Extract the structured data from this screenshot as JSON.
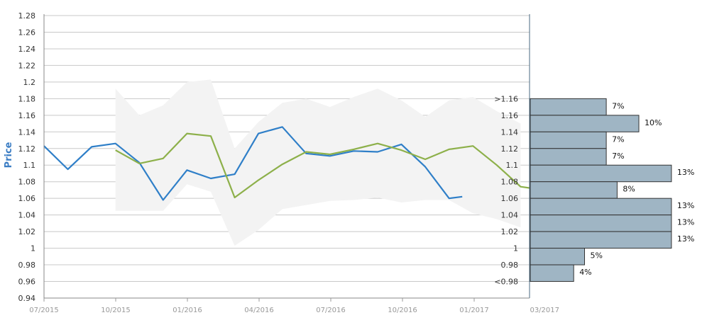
{
  "chart_data": {
    "type": "line",
    "title": "",
    "xlabel": "",
    "ylabel": "Price",
    "ylim": [
      0.94,
      1.28
    ],
    "y_ticks": [
      "1.28",
      "1.26",
      "1.24",
      "1.22",
      "1.2",
      "1.18",
      "1.16",
      "1.14",
      "1.12",
      "1.1",
      "1.08",
      "1.06",
      "1.04",
      "1.02",
      "1",
      "0.98",
      "0.96",
      "0.94"
    ],
    "x_ticks": [
      "07/2015",
      "10/2015",
      "01/2016",
      "04/2016",
      "07/2016",
      "10/2016",
      "01/2017",
      "03/2017"
    ],
    "grid": true,
    "x_months_from_start": [
      0,
      1,
      2,
      3,
      4,
      5,
      6,
      7,
      8,
      9,
      10,
      11,
      12,
      13,
      14,
      15,
      16,
      17,
      18,
      19,
      20,
      21
    ],
    "series": [
      {
        "color": "#2f7fc8",
        "points": [
          [
            0,
            1.123
          ],
          [
            1,
            1.095
          ],
          [
            2,
            1.122
          ],
          [
            3,
            1.126
          ],
          [
            4,
            1.103
          ],
          [
            5,
            1.058
          ],
          [
            6,
            1.094
          ],
          [
            7,
            1.084
          ],
          [
            8,
            1.089
          ],
          [
            9,
            1.138
          ],
          [
            10,
            1.146
          ],
          [
            11,
            1.114
          ],
          [
            12,
            1.111
          ],
          [
            13,
            1.117
          ],
          [
            14,
            1.116
          ],
          [
            15,
            1.125
          ],
          [
            16,
            1.098
          ],
          [
            17,
            1.06
          ],
          [
            17.55,
            1.062
          ]
        ]
      },
      {
        "color": "#8db04a",
        "points": [
          [
            3,
            1.118
          ],
          [
            4,
            1.102
          ],
          [
            5,
            1.108
          ],
          [
            6,
            1.138
          ],
          [
            7,
            1.135
          ],
          [
            8,
            1.061
          ],
          [
            9,
            1.082
          ],
          [
            10,
            1.101
          ],
          [
            11,
            1.116
          ],
          [
            12,
            1.113
          ],
          [
            13,
            1.119
          ],
          [
            14,
            1.126
          ],
          [
            15,
            1.118
          ],
          [
            16,
            1.107
          ],
          [
            17,
            1.119
          ],
          [
            18,
            1.123
          ],
          [
            19,
            1.1
          ],
          [
            20,
            1.074
          ],
          [
            20.5,
            1.072
          ]
        ]
      }
    ],
    "band": {
      "color": "#f3f3f3",
      "upper": [
        [
          3,
          1.192
        ],
        [
          4,
          1.16
        ],
        [
          5,
          1.172
        ],
        [
          6,
          1.2
        ],
        [
          7,
          1.203
        ],
        [
          8,
          1.12
        ],
        [
          9,
          1.152
        ],
        [
          10,
          1.175
        ],
        [
          11,
          1.18
        ],
        [
          12,
          1.17
        ],
        [
          13,
          1.182
        ],
        [
          14,
          1.192
        ],
        [
          15,
          1.178
        ],
        [
          16,
          1.158
        ],
        [
          17,
          1.178
        ],
        [
          18,
          1.182
        ],
        [
          19,
          1.165
        ],
        [
          20,
          1.15
        ]
      ],
      "lower": [
        [
          3,
          1.045
        ],
        [
          4,
          1.045
        ],
        [
          5,
          1.045
        ],
        [
          6,
          1.077
        ],
        [
          7,
          1.068
        ],
        [
          8,
          1.003
        ],
        [
          9,
          1.022
        ],
        [
          10,
          1.047
        ],
        [
          11,
          1.052
        ],
        [
          12,
          1.057
        ],
        [
          13,
          1.058
        ],
        [
          14,
          1.061
        ],
        [
          15,
          1.055
        ],
        [
          16,
          1.058
        ],
        [
          17,
          1.058
        ],
        [
          18,
          1.042
        ],
        [
          19,
          1.035
        ],
        [
          20,
          1.025
        ]
      ]
    },
    "histogram": {
      "color": "#9fb5c4",
      "border": "#333333",
      "bins": [
        {
          "label": ">1.16",
          "low": 1.16,
          "high": 1.18,
          "pct": 7,
          "pct_label": "7%"
        },
        {
          "label": "1.16",
          "low": 1.14,
          "high": 1.16,
          "pct": 10,
          "pct_label": "10%"
        },
        {
          "label": "1.14",
          "low": 1.12,
          "high": 1.14,
          "pct": 7,
          "pct_label": "7%"
        },
        {
          "label": "1.12",
          "low": 1.1,
          "high": 1.12,
          "pct": 7,
          "pct_label": "7%"
        },
        {
          "label": "1.1",
          "low": 1.08,
          "high": 1.1,
          "pct": 13,
          "pct_label": "13%"
        },
        {
          "label": "1.08",
          "low": 1.06,
          "high": 1.08,
          "pct": 8,
          "pct_label": "8%"
        },
        {
          "label": "1.06",
          "low": 1.04,
          "high": 1.06,
          "pct": 13,
          "pct_label": "13%"
        },
        {
          "label": "1.04",
          "low": 1.02,
          "high": 1.04,
          "pct": 13,
          "pct_label": "13%"
        },
        {
          "label": "1.02",
          "low": 1.0,
          "high": 1.02,
          "pct": 13,
          "pct_label": "13%"
        },
        {
          "label": "1",
          "low": 0.98,
          "high": 1.0,
          "pct": 5,
          "pct_label": "5%"
        },
        {
          "label": "0.98",
          "low": 0.96,
          "high": 0.98,
          "pct": 4,
          "pct_label": "4%"
        },
        {
          "label": "<0.98",
          "low": null,
          "high": null,
          "pct": null,
          "pct_label": ""
        }
      ]
    }
  }
}
